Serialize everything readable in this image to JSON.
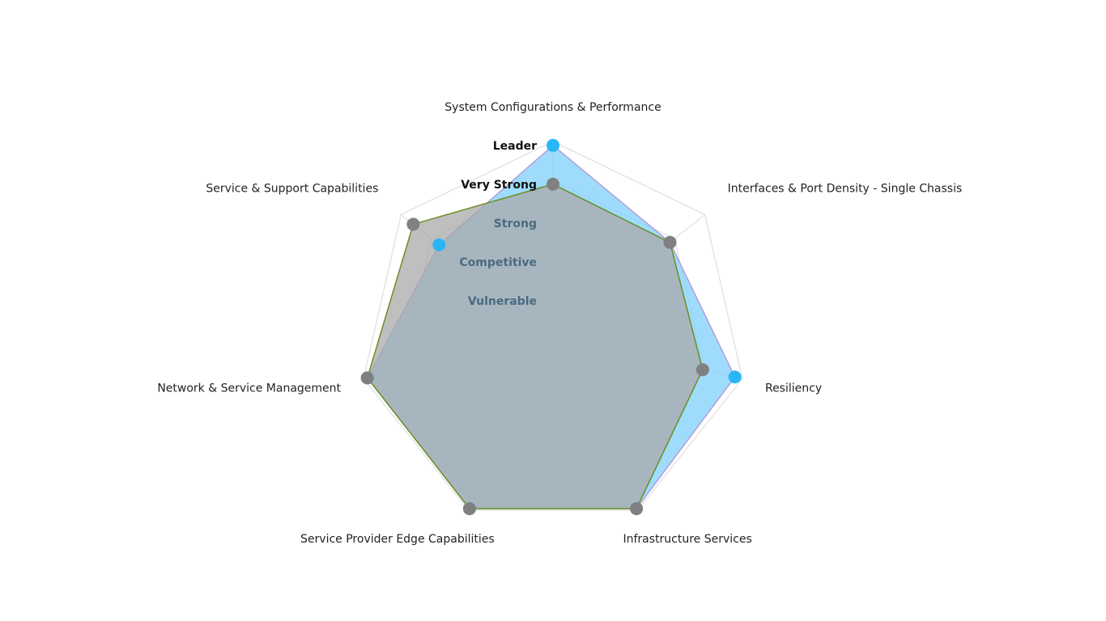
{
  "chart_data": {
    "type": "radar",
    "levels": [
      "Vulnerable",
      "Competitive",
      "Strong",
      "Very Strong",
      "Leader"
    ],
    "range": [
      0,
      5
    ],
    "axes": [
      "System Configurations & Performance",
      "Interfaces & Port Density - Single Chassis",
      "Resiliency",
      "Infrastructure Services",
      "Service Provider Edge Capabilities",
      "Network & Service Management",
      "Service & Support Capabilities"
    ],
    "series": [
      {
        "values": [
          4.9,
          3.85,
          4.8,
          4.95,
          4.95,
          4.9,
          3.75
        ],
        "color": "#29b6f6",
        "fill": "#7fd0fb",
        "stroke": "#b39ddb"
      },
      {
        "values": [
          3.9,
          3.85,
          3.95,
          4.95,
          4.95,
          4.9,
          4.6
        ],
        "color": "#808080",
        "fill": "#a9a9a9",
        "stroke": "#6b8e23"
      }
    ],
    "colors": {
      "grid": "#d9d9d9",
      "axis_label": "#222222",
      "level_label_dark": "#111111",
      "level_label_faded": "#4a6a80"
    }
  }
}
